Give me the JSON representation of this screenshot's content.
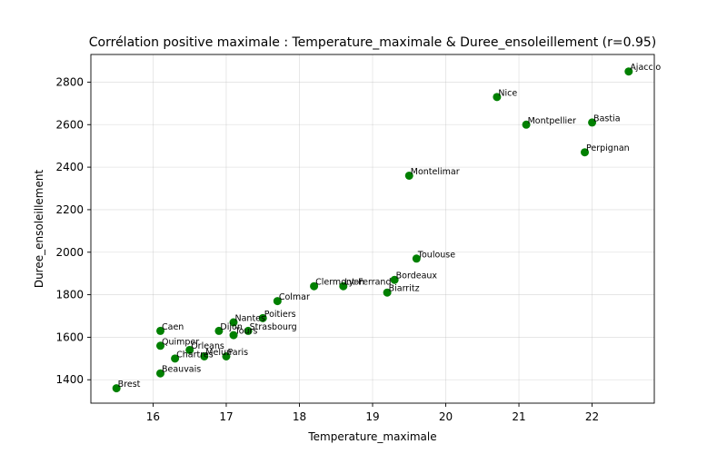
{
  "chart_data": {
    "type": "scatter",
    "title": "Corrélation positive maximale : Temperature_maximale & Duree_ensoleillement (r=0.95)",
    "xlabel": "Temperature_maximale",
    "ylabel": "Duree_ensoleillement",
    "xlim": [
      15.15,
      22.85
    ],
    "ylim": [
      1290,
      2930
    ],
    "xticks": [
      16,
      17,
      18,
      19,
      20,
      21,
      22
    ],
    "yticks": [
      1400,
      1600,
      1800,
      2000,
      2200,
      2400,
      2600,
      2800
    ],
    "grid": true,
    "marker_color": "#008000",
    "points": [
      {
        "label": "Ajaccio",
        "x": 22.5,
        "y": 2850
      },
      {
        "label": "Nice",
        "x": 20.7,
        "y": 2730
      },
      {
        "label": "Bastia",
        "x": 22.0,
        "y": 2610
      },
      {
        "label": "Montpellier",
        "x": 21.1,
        "y": 2600
      },
      {
        "label": "Perpignan",
        "x": 21.9,
        "y": 2470
      },
      {
        "label": "Montelimar",
        "x": 19.5,
        "y": 2360
      },
      {
        "label": "Toulouse",
        "x": 19.6,
        "y": 1970
      },
      {
        "label": "Bordeaux",
        "x": 19.3,
        "y": 1870
      },
      {
        "label": "Biarritz",
        "x": 19.2,
        "y": 1810
      },
      {
        "label": "Lyon",
        "x": 18.6,
        "y": 1840
      },
      {
        "label": "Clermont-Ferrand",
        "x": 18.2,
        "y": 1840
      },
      {
        "label": "Colmar",
        "x": 17.7,
        "y": 1770
      },
      {
        "label": "Poitiers",
        "x": 17.5,
        "y": 1690
      },
      {
        "label": "Nantes",
        "x": 17.1,
        "y": 1670
      },
      {
        "label": "Strasbourg",
        "x": 17.3,
        "y": 1630
      },
      {
        "label": "Dijon",
        "x": 16.9,
        "y": 1630
      },
      {
        "label": "Tours",
        "x": 17.1,
        "y": 1610
      },
      {
        "label": "Caen",
        "x": 16.1,
        "y": 1630
      },
      {
        "label": "Quimper",
        "x": 16.1,
        "y": 1560
      },
      {
        "label": "Orleans",
        "x": 16.5,
        "y": 1540
      },
      {
        "label": "Melun",
        "x": 16.7,
        "y": 1510
      },
      {
        "label": "Paris",
        "x": 17.0,
        "y": 1510
      },
      {
        "label": "Chartres",
        "x": 16.3,
        "y": 1500
      },
      {
        "label": "Beauvais",
        "x": 16.1,
        "y": 1430
      },
      {
        "label": "Brest",
        "x": 15.5,
        "y": 1360
      }
    ]
  }
}
